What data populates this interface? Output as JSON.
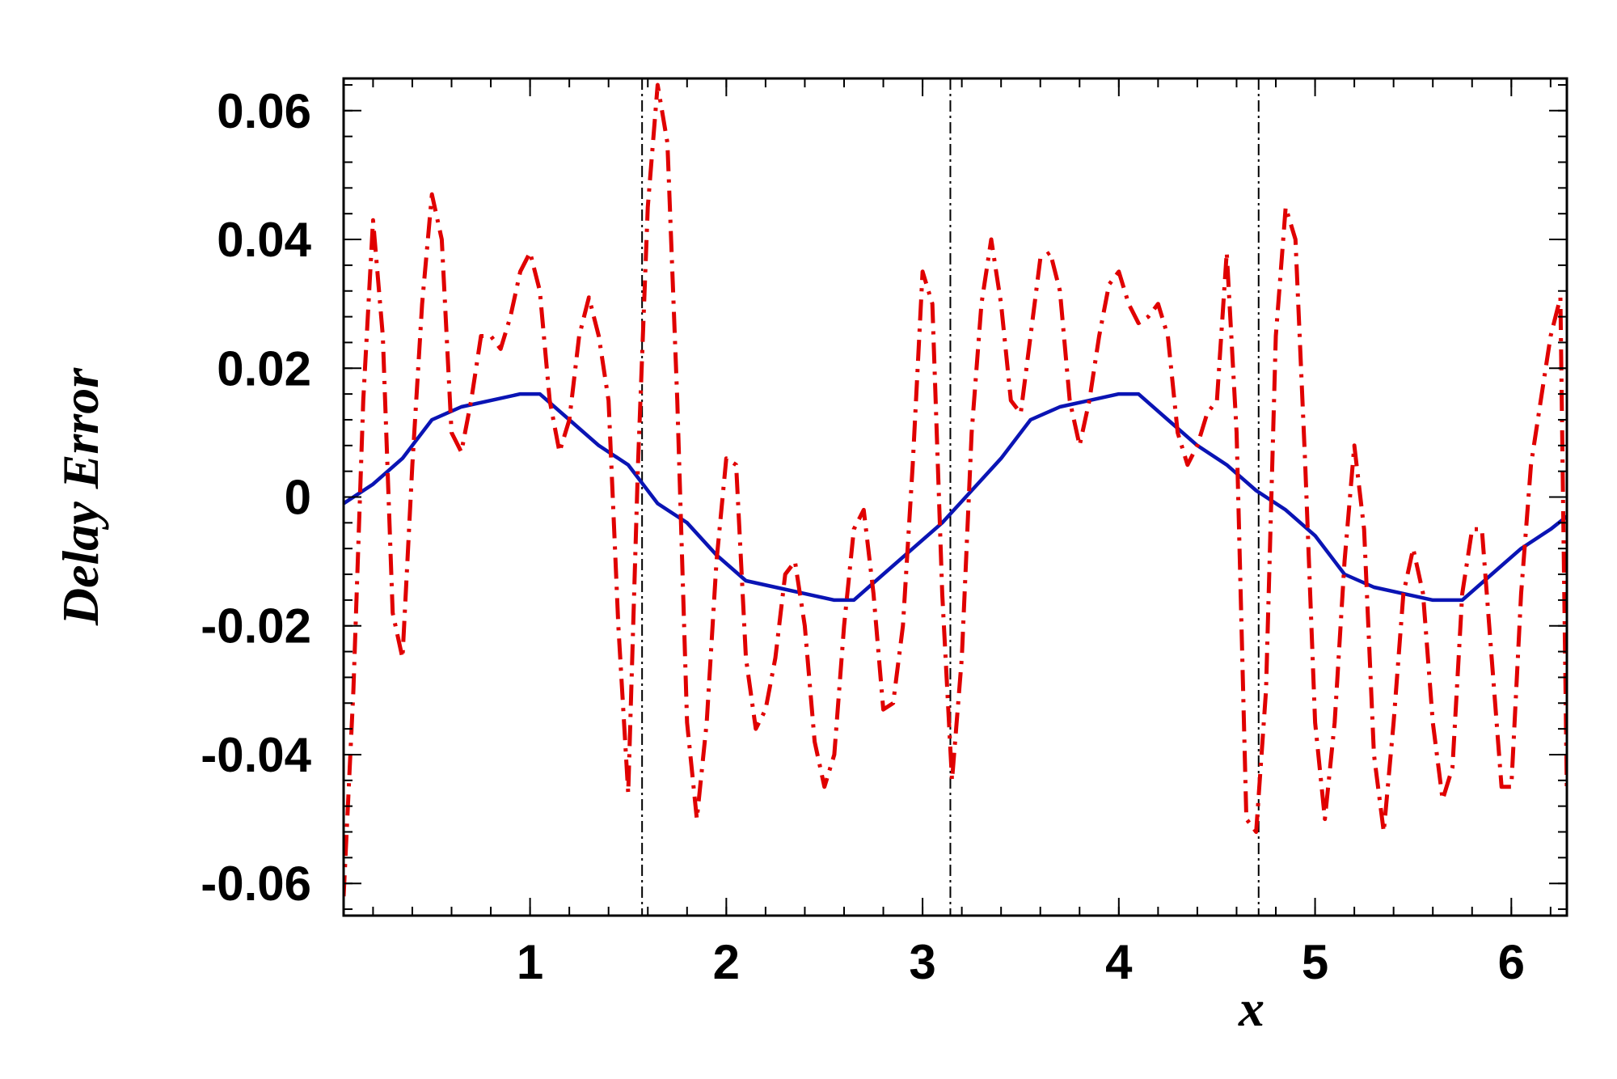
{
  "chart_data": {
    "type": "line",
    "xlabel": "x",
    "ylabel": "Delay Error",
    "xlim": [
      0.05,
      6.283
    ],
    "ylim": [
      -0.065,
      0.065
    ],
    "xticks": [
      1,
      2,
      3,
      4,
      5,
      6
    ],
    "xtick_labels": [
      "1",
      "2",
      "3",
      "4",
      "5",
      "6"
    ],
    "yticks": [
      0.06,
      0.04,
      0.02,
      0,
      -0.02,
      -0.04,
      -0.06
    ],
    "ytick_labels": [
      "0.06",
      "0.04",
      "0.02",
      "0",
      "-0.02",
      "-0.04",
      "-0.06"
    ],
    "grid": false,
    "vertical_reference_lines": [
      1.5708,
      3.1416,
      4.7124
    ],
    "series": [
      {
        "style": "solid",
        "color": "#0a14b4",
        "x": [
          0.05,
          0.2,
          0.35,
          0.5,
          0.65,
          0.8,
          0.95,
          1.05,
          1.2,
          1.35,
          1.5,
          1.65,
          1.8,
          1.95,
          2.1,
          2.25,
          2.4,
          2.55,
          2.65,
          2.8,
          2.95,
          3.1,
          3.25,
          3.4,
          3.55,
          3.7,
          3.85,
          4.0,
          4.1,
          4.25,
          4.4,
          4.55,
          4.7,
          4.85,
          5.0,
          5.15,
          5.3,
          5.45,
          5.6,
          5.75,
          5.9,
          6.05,
          6.2,
          6.283
        ],
        "y": [
          -0.001,
          0.002,
          0.006,
          0.012,
          0.014,
          0.015,
          0.016,
          0.016,
          0.012,
          0.008,
          0.005,
          -0.001,
          -0.004,
          -0.009,
          -0.013,
          -0.014,
          -0.015,
          -0.016,
          -0.016,
          -0.012,
          -0.008,
          -0.004,
          0.001,
          0.006,
          0.012,
          0.014,
          0.015,
          0.016,
          0.016,
          0.012,
          0.008,
          0.005,
          0.001,
          -0.002,
          -0.006,
          -0.012,
          -0.014,
          -0.015,
          -0.016,
          -0.016,
          -0.012,
          -0.008,
          -0.005,
          -0.003
        ]
      },
      {
        "style": "dash-dot",
        "color": "#e00000",
        "x": [
          0.05,
          0.1,
          0.15,
          0.2,
          0.25,
          0.3,
          0.35,
          0.4,
          0.45,
          0.5,
          0.55,
          0.6,
          0.65,
          0.7,
          0.75,
          0.8,
          0.85,
          0.9,
          0.95,
          1.0,
          1.05,
          1.1,
          1.15,
          1.2,
          1.25,
          1.3,
          1.35,
          1.4,
          1.45,
          1.5,
          1.55,
          1.6,
          1.65,
          1.7,
          1.75,
          1.8,
          1.85,
          1.9,
          1.95,
          2.0,
          2.05,
          2.1,
          2.15,
          2.2,
          2.25,
          2.3,
          2.35,
          2.4,
          2.45,
          2.5,
          2.55,
          2.6,
          2.65,
          2.7,
          2.75,
          2.8,
          2.85,
          2.9,
          2.95,
          3.0,
          3.05,
          3.1,
          3.15,
          3.2,
          3.25,
          3.3,
          3.35,
          3.4,
          3.45,
          3.5,
          3.55,
          3.6,
          3.65,
          3.7,
          3.75,
          3.8,
          3.85,
          3.9,
          3.95,
          4.0,
          4.05,
          4.1,
          4.15,
          4.2,
          4.25,
          4.3,
          4.35,
          4.4,
          4.45,
          4.5,
          4.55,
          4.6,
          4.65,
          4.7,
          4.75,
          4.8,
          4.85,
          4.9,
          4.95,
          5.0,
          5.05,
          5.1,
          5.15,
          5.2,
          5.25,
          5.3,
          5.35,
          5.4,
          5.45,
          5.5,
          5.55,
          5.6,
          5.65,
          5.7,
          5.75,
          5.8,
          5.85,
          5.9,
          5.95,
          6.0,
          6.05,
          6.1,
          6.15,
          6.2,
          6.25,
          6.283
        ],
        "y": [
          -0.062,
          -0.03,
          0.015,
          0.043,
          0.025,
          -0.018,
          -0.025,
          0.005,
          0.03,
          0.047,
          0.04,
          0.01,
          0.007,
          0.015,
          0.025,
          0.025,
          0.023,
          0.028,
          0.035,
          0.038,
          0.032,
          0.015,
          0.007,
          0.012,
          0.025,
          0.031,
          0.025,
          0.015,
          -0.02,
          -0.046,
          0.005,
          0.045,
          0.064,
          0.055,
          0.015,
          -0.035,
          -0.05,
          -0.035,
          -0.01,
          0.006,
          0.005,
          -0.025,
          -0.036,
          -0.033,
          -0.025,
          -0.012,
          -0.01,
          -0.02,
          -0.038,
          -0.045,
          -0.04,
          -0.02,
          -0.005,
          -0.002,
          -0.015,
          -0.033,
          -0.032,
          -0.02,
          0.005,
          0.035,
          0.03,
          -0.015,
          -0.044,
          -0.025,
          0.01,
          0.03,
          0.04,
          0.03,
          0.015,
          0.013,
          0.025,
          0.037,
          0.038,
          0.032,
          0.015,
          0.008,
          0.015,
          0.025,
          0.033,
          0.035,
          0.03,
          0.027,
          0.028,
          0.03,
          0.025,
          0.01,
          0.005,
          0.008,
          0.013,
          0.015,
          0.038,
          0.01,
          -0.05,
          -0.052,
          -0.03,
          0.025,
          0.045,
          0.04,
          0.005,
          -0.035,
          -0.05,
          -0.035,
          -0.01,
          0.008,
          -0.005,
          -0.04,
          -0.052,
          -0.035,
          -0.015,
          -0.008,
          -0.015,
          -0.035,
          -0.047,
          -0.042,
          -0.015,
          -0.005,
          -0.005,
          -0.025,
          -0.045,
          -0.045,
          -0.015,
          0.005,
          0.015,
          0.025,
          0.031,
          -0.046
        ]
      }
    ]
  }
}
